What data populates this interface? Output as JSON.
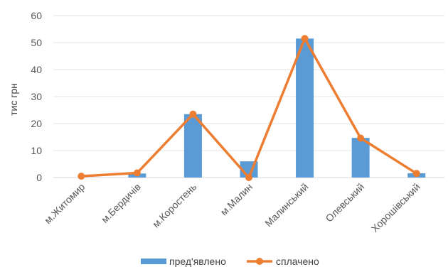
{
  "chart_data": {
    "type": "bar",
    "title": "",
    "xlabel": "",
    "ylabel": "тис грн",
    "ylim": [
      0,
      60
    ],
    "yticks": [
      0,
      10,
      20,
      30,
      40,
      50,
      60
    ],
    "grid": true,
    "legend_position": "bottom",
    "categories": [
      "м.Житомир",
      "м.Бердичів",
      "м.Коростень",
      "м.Малин",
      "Малинський",
      "Олевський",
      "Хорошівський"
    ],
    "series": [
      {
        "name": "пред'явлено",
        "type": "bar",
        "color": "#5B9BD5",
        "values": [
          0,
          1.5,
          23.5,
          6,
          51.5,
          14.7,
          1.6
        ]
      },
      {
        "name": "сплачено",
        "type": "line",
        "color": "#ED7D31",
        "values": [
          0.5,
          1.7,
          23.5,
          0,
          51.5,
          14.6,
          1.5
        ]
      }
    ]
  }
}
